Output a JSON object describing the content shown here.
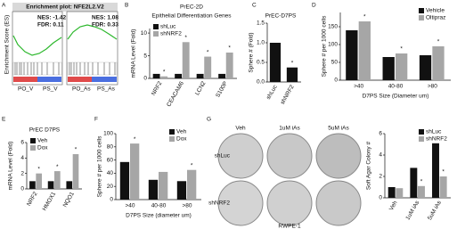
{
  "panels": [
    "A",
    "B",
    "C",
    "D",
    "E",
    "F",
    "G"
  ],
  "enrichment": {
    "title": "Enrichment plot: NFE2L2.V2",
    "ylabel": "Enrichment Score (ES)",
    "plots": [
      {
        "nes": "NES: -1.42",
        "fdr": "FDR: 0.11",
        "left": "PO_V",
        "right": "PS_V"
      },
      {
        "nes": "NES: 1.08",
        "fdr": "FDR: 0.33",
        "left": "PO_As",
        "right": "PS_As"
      }
    ]
  },
  "plate_images": {
    "columns": [
      "Veh",
      "1uM iAs",
      "5uM iAs"
    ],
    "rows": [
      "shLuc",
      "shNRF2"
    ],
    "caption": "RWPE-1"
  },
  "chart_data": [
    {
      "type": "bar",
      "title": "PrEC-2D",
      "subtitle": "Epithelial Differentiation Genes",
      "ylabel": "mRNA Level (Fold)",
      "categories": [
        "NRF2",
        "CEACAM6",
        "LCN2",
        "S100P"
      ],
      "series": [
        {
          "name": "shLuc",
          "color": "#111111",
          "values": [
            1,
            1,
            1,
            1
          ]
        },
        {
          "name": "shNRF2",
          "color": "#a6a6a6",
          "values": [
            0.45,
            8,
            4.8,
            5.7
          ]
        }
      ],
      "annotations": [
        "*",
        "*",
        "*",
        "*"
      ],
      "ylim": [
        0,
        11
      ],
      "yticks": [
        0,
        5,
        10
      ],
      "legend": "upper left"
    },
    {
      "type": "bar",
      "title": "PrEC-D7PS",
      "ylabel": "Sphere # (Fold)",
      "categories": [
        "shLuc",
        "shNRF2"
      ],
      "values": [
        1.0,
        0.37
      ],
      "color": "#111111",
      "annotations": [
        null,
        "*"
      ],
      "ylim": [
        0,
        1.5
      ],
      "yticks": [
        {
          "value": 0,
          "label": "0.0"
        },
        {
          "value": 0.5,
          "label": "0.5"
        },
        {
          "value": 1,
          "label": "1.0"
        },
        {
          "value": 1.5,
          "label": "1.5"
        }
      ]
    },
    {
      "type": "bar",
      "ylabel": "Sphere # per 1000 cells",
      "xlabel": "D7PS Size (Diameter um)",
      "categories": [
        ">40",
        "40-80",
        ">80"
      ],
      "series": [
        {
          "name": "Vehicle",
          "color": "#111111",
          "values": [
            140,
            65,
            70
          ]
        },
        {
          "name": "Oltipraz",
          "color": "#a6a6a6",
          "values": [
            165,
            75,
            95
          ]
        }
      ],
      "annotations": [
        "*",
        "*",
        "*"
      ],
      "ylim": [
        0,
        190
      ],
      "yticks": [
        0,
        50,
        100,
        150
      ],
      "legend": "upper right"
    },
    {
      "type": "bar",
      "title": "PrEC  D7PS",
      "ylabel": "mRNA Level (Fold)",
      "categories": [
        "NRF2",
        "HMOX1",
        "NQO1"
      ],
      "series": [
        {
          "name": "Veh",
          "color": "#111111",
          "values": [
            1,
            1,
            1
          ]
        },
        {
          "name": "Dox",
          "color": "#a6a6a6",
          "values": [
            2.0,
            2.3,
            4.5
          ]
        }
      ],
      "annotations": [
        "*",
        "*",
        "*"
      ],
      "ylim": [
        0,
        6
      ],
      "yticks": [
        0,
        2,
        4,
        6
      ],
      "legend": "upper left"
    },
    {
      "type": "bar",
      "ylabel": "Sphere # per 1000 cells",
      "xlabel": "D7PS Size (diameter um)",
      "categories": [
        ">40",
        "40-80",
        ">80"
      ],
      "series": [
        {
          "name": "Veh",
          "color": "#111111",
          "values": [
            57,
            30,
            28
          ]
        },
        {
          "name": "Dox",
          "color": "#a6a6a6",
          "values": [
            85,
            42,
            45
          ]
        }
      ],
      "annotations": [
        "*",
        null,
        "*"
      ],
      "ylim": [
        0,
        100
      ],
      "yticks": [
        0,
        20,
        40,
        60,
        80,
        100
      ],
      "legend": "upper right"
    },
    {
      "type": "bar",
      "ylabel": "Soft Agar Colony #",
      "categories": [
        "Veh",
        "1uM iAs",
        "5uM iAs"
      ],
      "series": [
        {
          "name": "shLuc",
          "color": "#111111",
          "values": [
            1.0,
            2.8,
            5.1
          ]
        },
        {
          "name": "shNRF2",
          "color": "#a6a6a6",
          "values": [
            0.9,
            1.1,
            2.0
          ]
        }
      ],
      "annotations": [
        null,
        "*",
        "*"
      ],
      "ylim": [
        0,
        6
      ],
      "yticks": [
        0,
        2,
        4,
        6
      ],
      "legend": "upper right"
    }
  ]
}
